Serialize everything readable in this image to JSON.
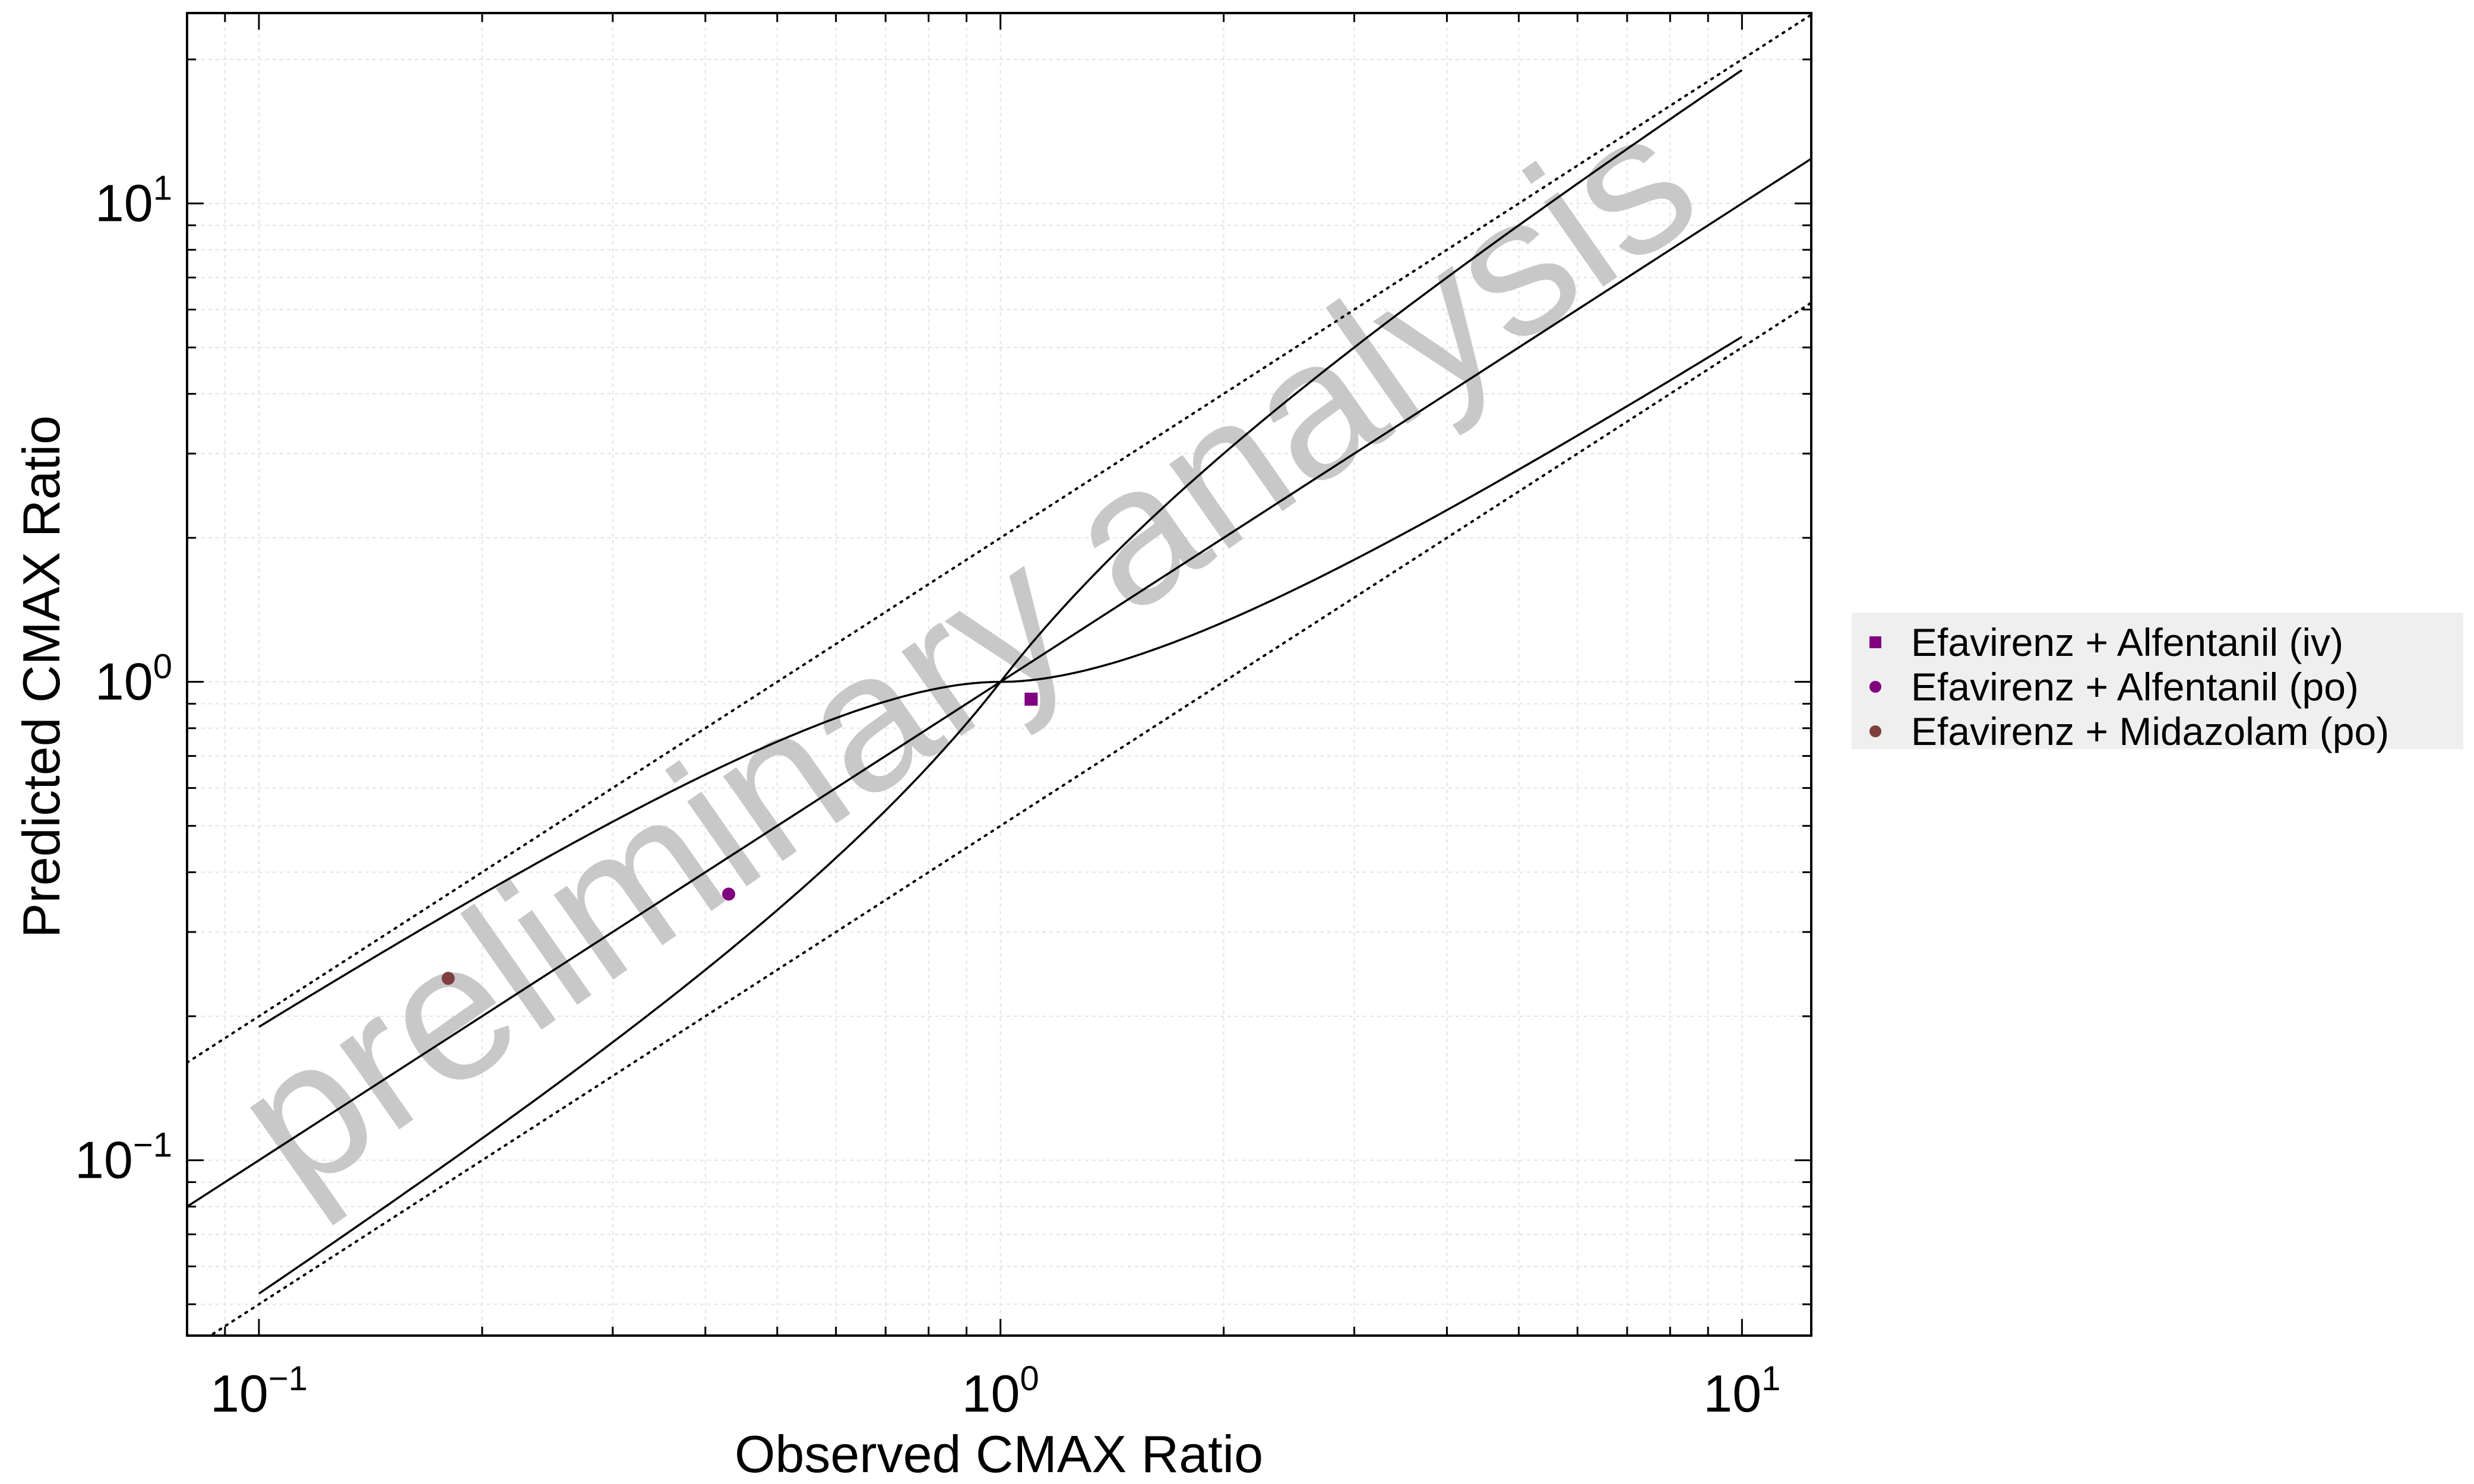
{
  "chart_data": {
    "type": "scatter",
    "xscale": "log",
    "yscale": "log",
    "xlim": [
      0.08,
      12.4
    ],
    "ylim": [
      0.043,
      25
    ],
    "xlabel": "Observed CMAX Ratio",
    "ylabel": "Predicted CMAX Ratio",
    "title": "",
    "grid": true,
    "legend_position": "right",
    "watermark": "preliminary analysis",
    "x_ticks": [
      {
        "value": 0.1,
        "base": "10",
        "exp": "−1"
      },
      {
        "value": 1,
        "base": "10",
        "exp": "0"
      },
      {
        "value": 10,
        "base": "10",
        "exp": "1"
      }
    ],
    "y_ticks": [
      {
        "value": 0.1,
        "base": "10",
        "exp": "−1"
      },
      {
        "value": 1,
        "base": "10",
        "exp": "0"
      },
      {
        "value": 10,
        "base": "10",
        "exp": "1"
      }
    ],
    "reference_lines": [
      {
        "kind": "identity",
        "style": "solid"
      },
      {
        "kind": "2-fold",
        "style": "dotted"
      },
      {
        "kind": "guest-limits",
        "style": "solid",
        "x_range": [
          0.1,
          10
        ]
      }
    ],
    "series": [
      {
        "name": "Efavirenz + Alfentanil (iv)",
        "marker": "square",
        "color": "#800080",
        "x": [
          1.1
        ],
        "y": [
          0.92
        ]
      },
      {
        "name": "Efavirenz + Alfentanil (po)",
        "marker": "circle",
        "color": "#800080",
        "x": [
          0.43
        ],
        "y": [
          0.36
        ]
      },
      {
        "name": "Efavirenz + Midazolam (po)",
        "marker": "circle",
        "color": "#7f3f3f",
        "x": [
          0.18
        ],
        "y": [
          0.24
        ]
      }
    ]
  }
}
